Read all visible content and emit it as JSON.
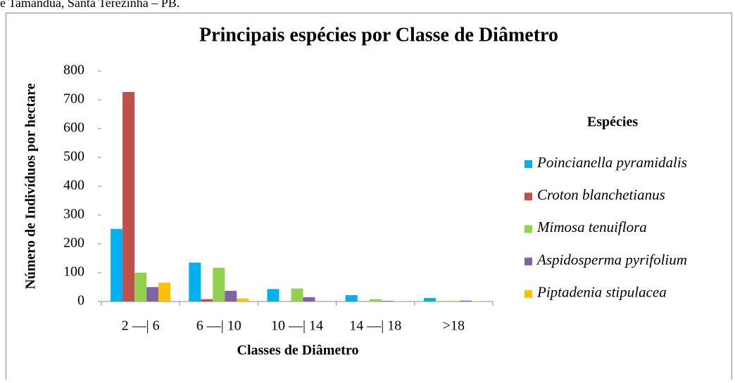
{
  "caption": "e Tamanduá, Santa Terezinha – PB.",
  "chart_data": {
    "type": "bar",
    "title": "Principais espécies por Classe de Diâmetro",
    "x_label": "Classes de Diâmetro",
    "y_label": "Número de Indivíduos por hectare",
    "legend_title": "Espécies",
    "categories": [
      "2 —| 6",
      "6 —| 10",
      "10 —| 14",
      "14 —| 18",
      ">18"
    ],
    "series": [
      {
        "name": "Poincianella pyramidalis",
        "color": "#00b0f0",
        "values": [
          252,
          135,
          43,
          22,
          12
        ]
      },
      {
        "name": "Croton blanchetianus",
        "color": "#c0504d",
        "values": [
          727,
          8,
          0,
          0,
          0
        ]
      },
      {
        "name": "Mimosa tenuiflora",
        "color": "#92d050",
        "values": [
          100,
          117,
          45,
          8,
          2
        ]
      },
      {
        "name": "Aspidosperma pyrifolium",
        "color": "#8064a2",
        "values": [
          50,
          37,
          15,
          2,
          3
        ]
      },
      {
        "name": "Piptadenia stipulacea",
        "color": "#ffc000",
        "values": [
          65,
          10,
          0,
          1,
          1
        ]
      }
    ],
    "ylim": [
      0,
      800
    ],
    "yticks": [
      0,
      100,
      200,
      300,
      400,
      500,
      600,
      700,
      800
    ],
    "grid": false
  }
}
